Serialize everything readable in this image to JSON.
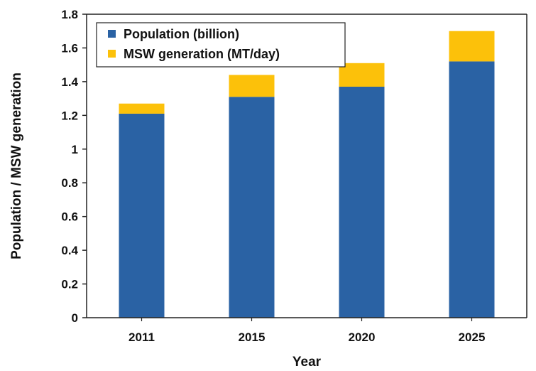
{
  "chart_data": {
    "type": "bar",
    "stacked": true,
    "categories": [
      "2011",
      "2015",
      "2020",
      "2025"
    ],
    "series": [
      {
        "name": "Population (billion)",
        "values": [
          1.21,
          1.31,
          1.37,
          1.52
        ],
        "color": "#2a62a4"
      },
      {
        "name": "MSW generation (MT/day)",
        "values": [
          0.06,
          0.13,
          0.14,
          0.18
        ],
        "color": "#fcc10a"
      }
    ],
    "title": "",
    "xlabel": "Year",
    "ylabel": "Population / MSW generation",
    "ylim": [
      0,
      1.8
    ],
    "yticks": [
      "0",
      "0.2",
      "0.4",
      "0.6",
      "0.8",
      "1",
      "1.2",
      "1.4",
      "1.6",
      "1.8"
    ],
    "grid": false,
    "legend_position": "top-left"
  }
}
